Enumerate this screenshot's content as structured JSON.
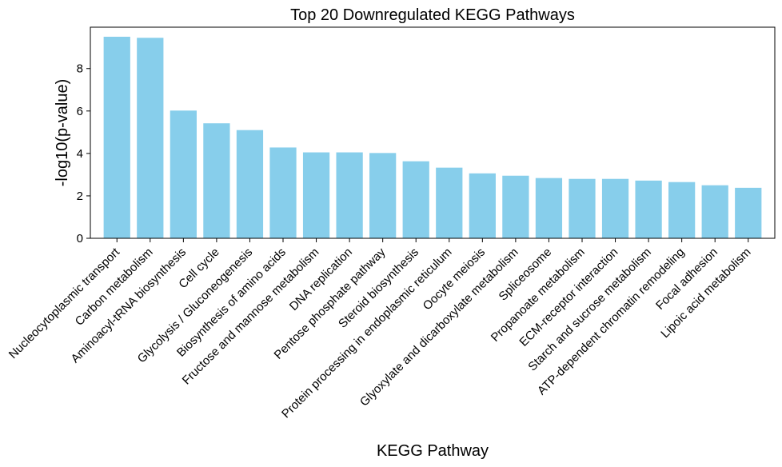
{
  "chart_data": {
    "type": "bar",
    "title": "Top 20 Downregulated KEGG Pathways",
    "xlabel": "KEGG Pathway",
    "ylabel": "-log10(p-value)",
    "ylim": [
      0,
      9.95
    ],
    "yticks": [
      0,
      2,
      4,
      6,
      8
    ],
    "grid": false,
    "categories": [
      "Nucleocytoplasmic transport",
      "Carbon metabolism",
      "Aminoacyl-tRNA biosynthesis",
      "Cell cycle",
      "Glycolysis / Gluconeogenesis",
      "Biosynthesis of amino acids",
      "Fructose and mannose metabolism",
      "DNA replication",
      "Pentose phosphate pathway",
      "Steroid biosynthesis",
      "Protein processing in endoplasmic reticulum",
      "Oocyte meiosis",
      "Glyoxylate and dicarboxylate metabolism",
      "Spliceosome",
      "Propanoate metabolism",
      "ECM-receptor interaction",
      "Starch and sucrose metabolism",
      "ATP-dependent chromatin remodeling",
      "Focal adhesion",
      "Lipoic acid metabolism"
    ],
    "values": [
      9.5,
      9.45,
      6.02,
      5.42,
      5.1,
      4.28,
      4.05,
      4.05,
      4.02,
      3.63,
      3.33,
      3.06,
      2.95,
      2.84,
      2.8,
      2.8,
      2.72,
      2.65,
      2.5,
      2.38
    ],
    "bar_color": "#87CEEB"
  }
}
